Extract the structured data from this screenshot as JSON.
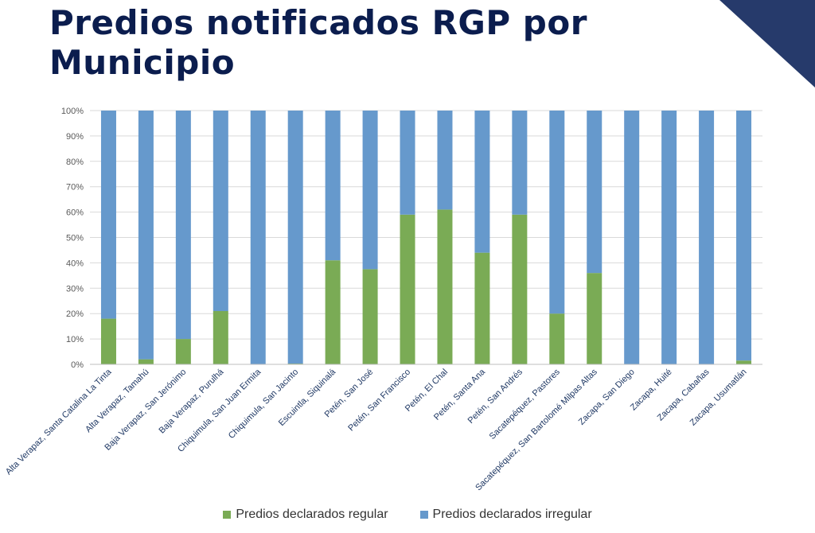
{
  "page": {
    "title": "Predios notificados RGP por Municipio",
    "accent_color": "#263a6b"
  },
  "chart_data": {
    "type": "bar",
    "stacked": "percent",
    "title": "",
    "xlabel": "",
    "ylabel": "",
    "ylim": [
      0,
      100
    ],
    "yticks": [
      "0%",
      "10%",
      "20%",
      "30%",
      "40%",
      "50%",
      "60%",
      "70%",
      "80%",
      "90%",
      "100%"
    ],
    "grid": true,
    "legend_position": "bottom",
    "categories": [
      "Alta Verapaz, Santa Catalina La Tinta",
      "Alta Verapaz, Tamahú",
      "Baja Verapaz, San Jerónimo",
      "Baja Verapaz, Purulhá",
      "Chiquimula, San Juan Ermita",
      "Chiquimula, San Jacinto",
      "Escuintla, Siquinalá",
      "Petén, San José",
      "Petén, San Francisco",
      "Petén, El Chal",
      "Petén, Santa Ana",
      "Petén, San Andrés",
      "Sacatepéquez, Pastores",
      "Sacatepéquez, San Bartolomé Milpas Altas",
      "Zacapa, San Diego",
      "Zacapa, Huité",
      "Zacapa, Cabañas",
      "Zacapa, Usumatlán"
    ],
    "series": [
      {
        "name": "Predios declarados regular",
        "color": "#7aab55",
        "values": [
          18,
          2,
          10,
          21,
          0,
          0.3,
          41,
          37.5,
          59,
          61,
          44,
          59,
          20,
          36,
          0,
          0,
          0,
          1.5
        ]
      },
      {
        "name": "Predios declarados irregular",
        "color": "#6699cc",
        "values": [
          82,
          98,
          90,
          79,
          100,
          99.7,
          59,
          62.5,
          41,
          39,
          56,
          41,
          80,
          64,
          100,
          100,
          100,
          98.5
        ]
      }
    ]
  }
}
